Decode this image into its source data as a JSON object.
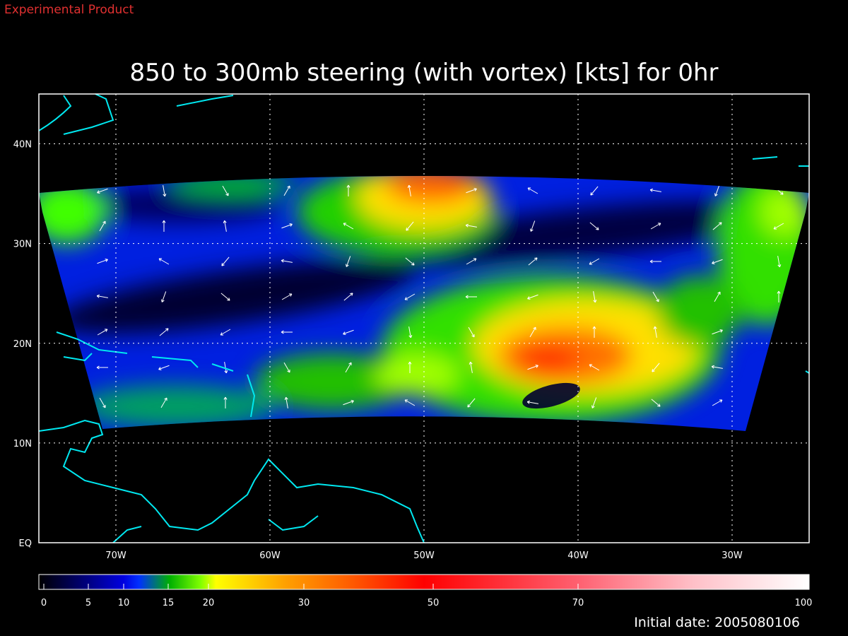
{
  "header": {
    "note": "Experimental Product",
    "title": "850 to 300mb steering (with vortex) [kts] for 0hr"
  },
  "axes": {
    "x": {
      "lim": [
        -75,
        -25
      ],
      "ticks": [
        {
          "value": -70,
          "label": "70W"
        },
        {
          "value": -60,
          "label": "60W"
        },
        {
          "value": -50,
          "label": "50W"
        },
        {
          "value": -40,
          "label": "40W"
        },
        {
          "value": -30,
          "label": "30W"
        }
      ]
    },
    "y": {
      "lim": [
        0,
        45
      ],
      "ticks": [
        {
          "value": 0,
          "label": "EQ"
        },
        {
          "value": 10,
          "label": "10N"
        },
        {
          "value": 20,
          "label": "20N"
        },
        {
          "value": 30,
          "label": "30N"
        },
        {
          "value": 40,
          "label": "40N"
        }
      ]
    }
  },
  "colorbar": {
    "ticks": [
      0,
      5,
      10,
      15,
      20,
      30,
      50,
      70,
      100
    ]
  },
  "footer": {
    "initial_date": "Initial date: 2005080106"
  }
}
